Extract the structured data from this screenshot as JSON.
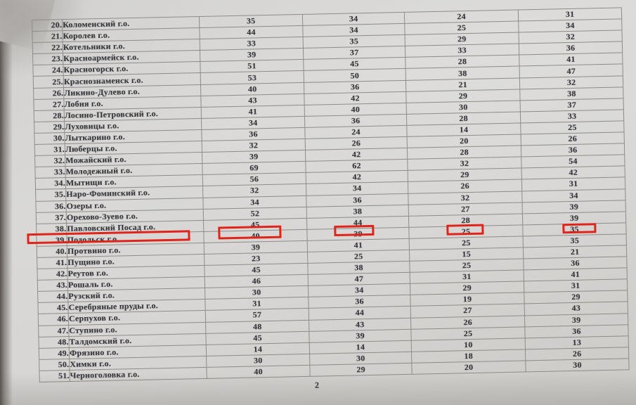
{
  "document": {
    "page_number": "2",
    "highlight": {
      "color": "#e1241a",
      "row_num": "39."
    },
    "rows": [
      {
        "num": "20.",
        "name": "Коломенский г.о.",
        "values": [
          "35",
          "34",
          "24",
          "31"
        ]
      },
      {
        "num": "21.",
        "name": "Королев г.о.",
        "values": [
          "44",
          "34",
          "25",
          "34"
        ]
      },
      {
        "num": "22.",
        "name": "Котельники г.о.",
        "values": [
          "33",
          "35",
          "29",
          "32"
        ]
      },
      {
        "num": "23.",
        "name": "Красноармейск г.о.",
        "values": [
          "39",
          "37",
          "33",
          "36"
        ]
      },
      {
        "num": "24.",
        "name": "Красногорск г.о.",
        "values": [
          "51",
          "45",
          "28",
          "41"
        ]
      },
      {
        "num": "25.",
        "name": "Краснознаменск г.о.",
        "values": [
          "53",
          "50",
          "38",
          "47"
        ]
      },
      {
        "num": "26.",
        "name": "Ликино-Дулево г.о.",
        "values": [
          "40",
          "36",
          "21",
          "32"
        ]
      },
      {
        "num": "27.",
        "name": "Лобня г.о.",
        "values": [
          "43",
          "42",
          "29",
          "38"
        ]
      },
      {
        "num": "28.",
        "name": "Лосино-Петровский г.о.",
        "values": [
          "41",
          "40",
          "30",
          "37"
        ]
      },
      {
        "num": "29.",
        "name": "Луховицы г.о.",
        "values": [
          "34",
          "36",
          "28",
          "33"
        ]
      },
      {
        "num": "30.",
        "name": "Лыткарино г.о.",
        "values": [
          "36",
          "24",
          "14",
          "25"
        ]
      },
      {
        "num": "31.",
        "name": "Люберцы г.о.",
        "values": [
          "32",
          "26",
          "20",
          "26"
        ]
      },
      {
        "num": "32.",
        "name": "Можайский г.о.",
        "values": [
          "39",
          "42",
          "28",
          "36"
        ]
      },
      {
        "num": "33.",
        "name": "Молодежный г.о.",
        "values": [
          "69",
          "62",
          "32",
          "54"
        ]
      },
      {
        "num": "34.",
        "name": "Мытищи г.о.",
        "values": [
          "56",
          "42",
          "29",
          "42"
        ]
      },
      {
        "num": "35.",
        "name": "Наро-Фоминский г.о.",
        "values": [
          "32",
          "34",
          "26",
          "31"
        ]
      },
      {
        "num": "36.",
        "name": "Озеры г.о.",
        "values": [
          "34",
          "36",
          "32",
          "34"
        ]
      },
      {
        "num": "37.",
        "name": "Орехово-Зуево г.о.",
        "values": [
          "52",
          "38",
          "27",
          "39"
        ]
      },
      {
        "num": "38.",
        "name": "Павловский Посад г.о.",
        "values": [
          "45",
          "44",
          "28",
          "39"
        ]
      },
      {
        "num": "39.",
        "name": "Подольск г.о.",
        "values": [
          "40",
          "39",
          "25",
          "35"
        ]
      },
      {
        "num": "40.",
        "name": "Протвино г.о.",
        "values": [
          "39",
          "41",
          "25",
          "35"
        ]
      },
      {
        "num": "41.",
        "name": "Пущино г.о.",
        "values": [
          "23",
          "25",
          "15",
          "21"
        ]
      },
      {
        "num": "42.",
        "name": "Реутов г.о.",
        "values": [
          "45",
          "38",
          "25",
          "36"
        ]
      },
      {
        "num": "43.",
        "name": "Рошаль г.о.",
        "values": [
          "46",
          "47",
          "31",
          "41"
        ]
      },
      {
        "num": "44.",
        "name": "Рузский г.о.",
        "values": [
          "30",
          "34",
          "29",
          "31"
        ]
      },
      {
        "num": "45.",
        "name": "Серебряные пруды г.о.",
        "values": [
          "31",
          "36",
          "19",
          "29"
        ]
      },
      {
        "num": "46.",
        "name": "Серпухов г.о.",
        "values": [
          "57",
          "44",
          "27",
          "43"
        ]
      },
      {
        "num": "47.",
        "name": "Ступино г.о.",
        "values": [
          "48",
          "43",
          "26",
          "39"
        ]
      },
      {
        "num": "48.",
        "name": "Талдомский г.о.",
        "values": [
          "45",
          "39",
          "25",
          "36"
        ]
      },
      {
        "num": "49.",
        "name": "Фрязино г.о.",
        "values": [
          "14",
          "14",
          "10",
          "13"
        ]
      },
      {
        "num": "50.",
        "name": "Химки г.о.",
        "values": [
          "30",
          "30",
          "18",
          "26"
        ]
      },
      {
        "num": "51.",
        "name": "Черноголовка г.о.",
        "values": [
          "40",
          "29",
          "20",
          "30"
        ]
      }
    ]
  }
}
